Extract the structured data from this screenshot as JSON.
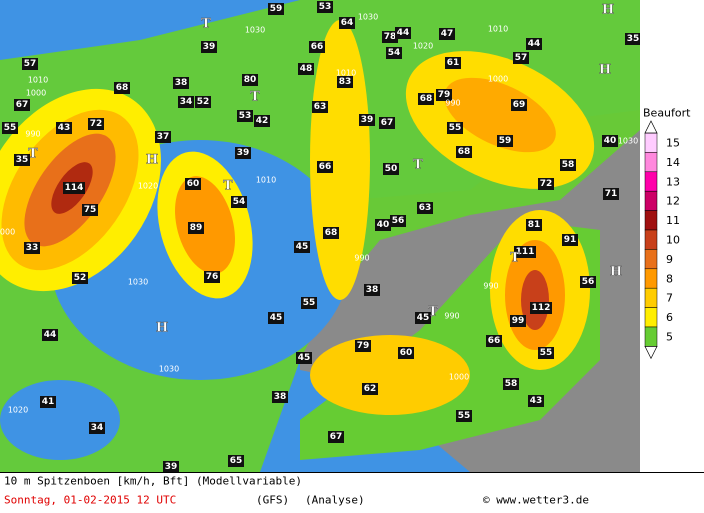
{
  "legend": {
    "title": "Beaufort",
    "levels": [
      15,
      14,
      13,
      12,
      11,
      10,
      9,
      8,
      7,
      6,
      5
    ]
  },
  "gust_labels": [
    57,
    67,
    55,
    35,
    43,
    72,
    68,
    114,
    75,
    33,
    52,
    44,
    41,
    34,
    39,
    65,
    67,
    55,
    43,
    58,
    62,
    38,
    45,
    79,
    60,
    55,
    66,
    45,
    99,
    112,
    111,
    81,
    91,
    56,
    38,
    55,
    45,
    45,
    68,
    40,
    56,
    63,
    76,
    89,
    60,
    54,
    39,
    37,
    53,
    42,
    80,
    52,
    34,
    38,
    39,
    59,
    53,
    64,
    66,
    48,
    83,
    63,
    39,
    67,
    66,
    50,
    79,
    68,
    55,
    68,
    59,
    69,
    58,
    72,
    71,
    40,
    57,
    44,
    47,
    61,
    54,
    78,
    44,
    35
  ],
  "isobar_labels": [
    "1030",
    "1030",
    "1020",
    "1010",
    "1000",
    "990",
    "1020",
    "1010",
    "1000",
    "1030",
    "1030",
    "990",
    "990",
    "990",
    "1000",
    "1000",
    "1010",
    "990",
    "1010",
    "1030",
    "1020"
  ],
  "pressure_centers": [
    "H",
    "H",
    "H",
    "H",
    "H",
    "T",
    "T",
    "T",
    "T",
    "T",
    "T",
    "T"
  ],
  "footer": {
    "description": "10 m Spitzenboen [km/h, Bft] (Modellvariable)",
    "date": "Sonntag, 01-02-2015  12 UTC",
    "model": "(GFS)",
    "run": "(Analyse)",
    "copyright": "© www.wetter3.de"
  }
}
